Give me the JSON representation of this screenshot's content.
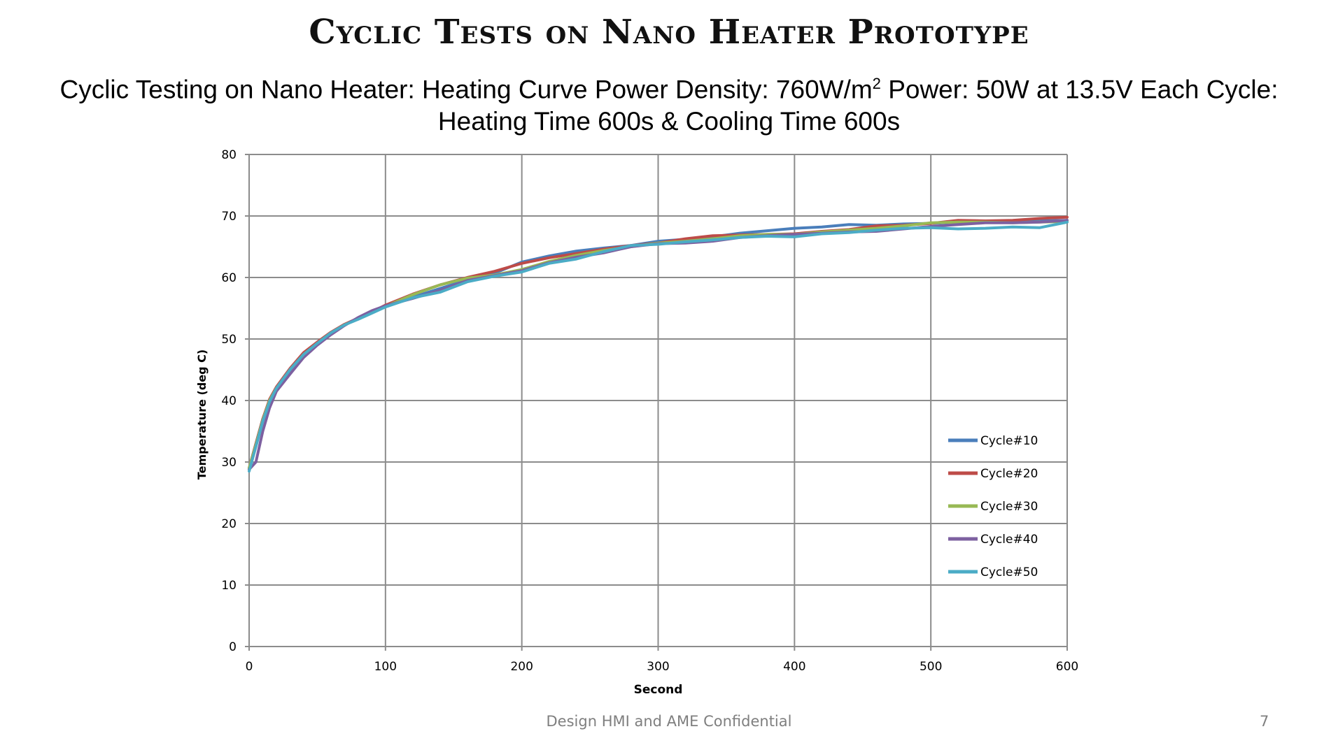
{
  "slide": {
    "title": "Cyclic Tests on Nano Heater Prototype",
    "footer": "Design HMI and AME Confidential",
    "page_number": "7"
  },
  "chart_title": {
    "part1": "Cyclic Testing on Nano Heater: Heating Curve  Power Density: 760W/m",
    "superscript": "2",
    "part2": " Power: 50W at 13.5V  Each Cycle: Heating Time 600s & Cooling Time 600s"
  },
  "chart_data": {
    "type": "line",
    "title": "",
    "xlabel": "Second",
    "ylabel": "Temperature (deg C)",
    "xlim": [
      0,
      600
    ],
    "ylim": [
      0,
      80
    ],
    "x_ticks": [
      0,
      100,
      200,
      300,
      400,
      500,
      600
    ],
    "y_ticks": [
      0,
      10,
      20,
      30,
      40,
      50,
      60,
      70,
      80
    ],
    "grid": true,
    "legend_position": "right",
    "x": [
      0,
      5,
      10,
      15,
      20,
      30,
      40,
      50,
      60,
      70,
      80,
      90,
      100,
      120,
      140,
      160,
      180,
      200,
      220,
      240,
      260,
      280,
      300,
      320,
      340,
      360,
      380,
      400,
      420,
      440,
      460,
      480,
      500,
      520,
      540,
      560,
      580,
      600
    ],
    "series": [
      {
        "name": "Cycle#10",
        "color": "#4a7ebb",
        "values": [
          29.0,
          33.0,
          37.0,
          40.0,
          42.0,
          45.0,
          47.5,
          49.3,
          51.0,
          52.3,
          53.3,
          54.3,
          55.3,
          56.8,
          58.2,
          59.6,
          60.7,
          62.5,
          63.5,
          64.3,
          64.8,
          65.2,
          65.9,
          66.2,
          66.6,
          67.2,
          67.6,
          68.0,
          68.2,
          68.6,
          68.5,
          68.7,
          68.8,
          69.0,
          69.2,
          69.0,
          69.2,
          69.3
        ]
      },
      {
        "name": "Cycle#20",
        "color": "#be4b48",
        "values": [
          29.0,
          33.0,
          37.0,
          40.2,
          42.2,
          45.2,
          47.8,
          49.5,
          51.1,
          52.4,
          53.4,
          54.4,
          55.5,
          57.3,
          58.8,
          60.0,
          61.0,
          62.3,
          63.2,
          63.9,
          64.6,
          65.2,
          65.6,
          66.3,
          66.8,
          66.9,
          67.0,
          67.1,
          67.5,
          67.8,
          68.4,
          68.5,
          68.8,
          69.3,
          69.2,
          69.3,
          69.6,
          69.8
        ]
      },
      {
        "name": "Cycle#30",
        "color": "#98b954",
        "values": [
          29.0,
          32.8,
          36.8,
          40.0,
          42.0,
          45.0,
          47.5,
          49.3,
          51.0,
          52.3,
          53.3,
          54.3,
          55.3,
          57.2,
          58.8,
          59.9,
          60.4,
          61.3,
          62.6,
          63.6,
          64.4,
          65.0,
          65.6,
          65.9,
          66.3,
          66.8,
          67.0,
          67.0,
          67.4,
          67.7,
          68.0,
          68.4,
          68.9,
          69.0,
          69.0,
          68.9,
          69.0,
          69.1
        ]
      },
      {
        "name": "Cycle#40",
        "color": "#7d60a0",
        "values": [
          28.8,
          30.0,
          35.0,
          38.8,
          41.5,
          44.3,
          47.0,
          49.0,
          50.7,
          52.2,
          53.5,
          54.6,
          55.4,
          56.6,
          57.9,
          59.5,
          60.3,
          61.1,
          62.4,
          63.3,
          64.0,
          65.0,
          65.5,
          65.6,
          65.9,
          66.5,
          66.8,
          67.0,
          67.2,
          67.4,
          67.5,
          67.9,
          68.3,
          68.6,
          68.9,
          68.9,
          69.0,
          69.3
        ]
      },
      {
        "name": "Cycle#50",
        "color": "#4bacc6",
        "values": [
          28.5,
          32.5,
          36.6,
          39.8,
          42.0,
          45.0,
          47.5,
          49.3,
          51.0,
          52.3,
          53.2,
          54.2,
          55.2,
          56.7,
          57.6,
          59.3,
          60.2,
          60.9,
          62.3,
          63.0,
          64.2,
          65.2,
          65.4,
          65.8,
          66.1,
          66.5,
          66.7,
          66.6,
          67.1,
          67.3,
          67.7,
          68.0,
          68.1,
          67.9,
          68.0,
          68.2,
          68.1,
          69.0
        ]
      }
    ]
  }
}
